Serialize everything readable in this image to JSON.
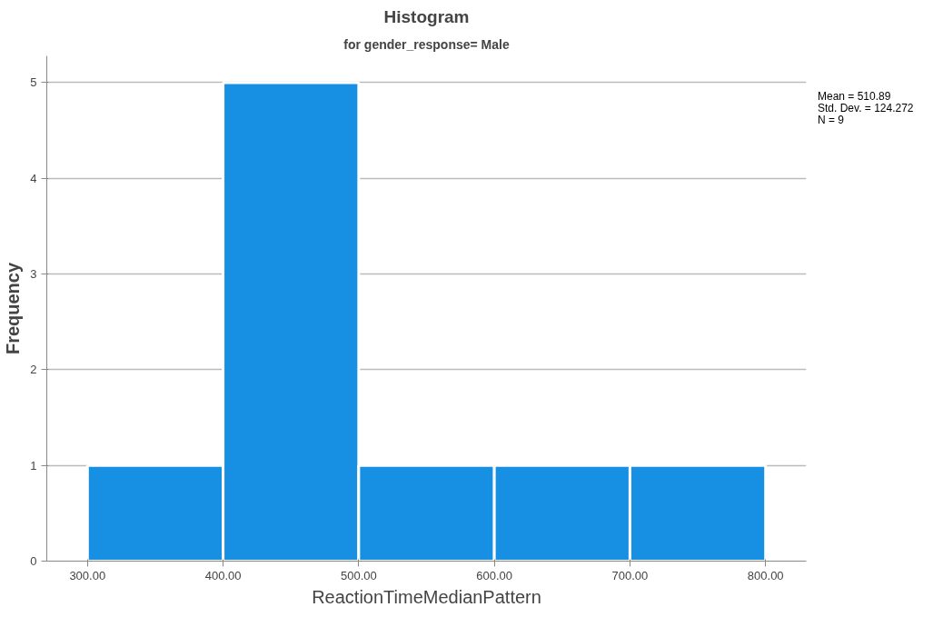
{
  "chart_data": {
    "type": "histogram",
    "title": "Histogram",
    "subtitle": "for gender_response= Male",
    "xlabel": "ReactionTimeMedianPattern",
    "ylabel": "Frequency",
    "bins": [
      300,
      400,
      500,
      600,
      700,
      800
    ],
    "values": [
      1,
      5,
      1,
      1,
      1
    ],
    "color": "#1790e3",
    "xlim": [
      270,
      830
    ],
    "ylim": [
      0,
      5.28
    ],
    "xticks": [
      {
        "value": 300,
        "label": "300.00"
      },
      {
        "value": 400,
        "label": "400.00"
      },
      {
        "value": 500,
        "label": "500.00"
      },
      {
        "value": 600,
        "label": "600.00"
      },
      {
        "value": 700,
        "label": "700.00"
      },
      {
        "value": 800,
        "label": "800.00"
      }
    ],
    "yticks": [
      0,
      1,
      2,
      3,
      4,
      5
    ],
    "grid": "y",
    "annotations": [
      "Mean = 510.89",
      "Std. Dev. = 124.272",
      "N = 9"
    ]
  }
}
